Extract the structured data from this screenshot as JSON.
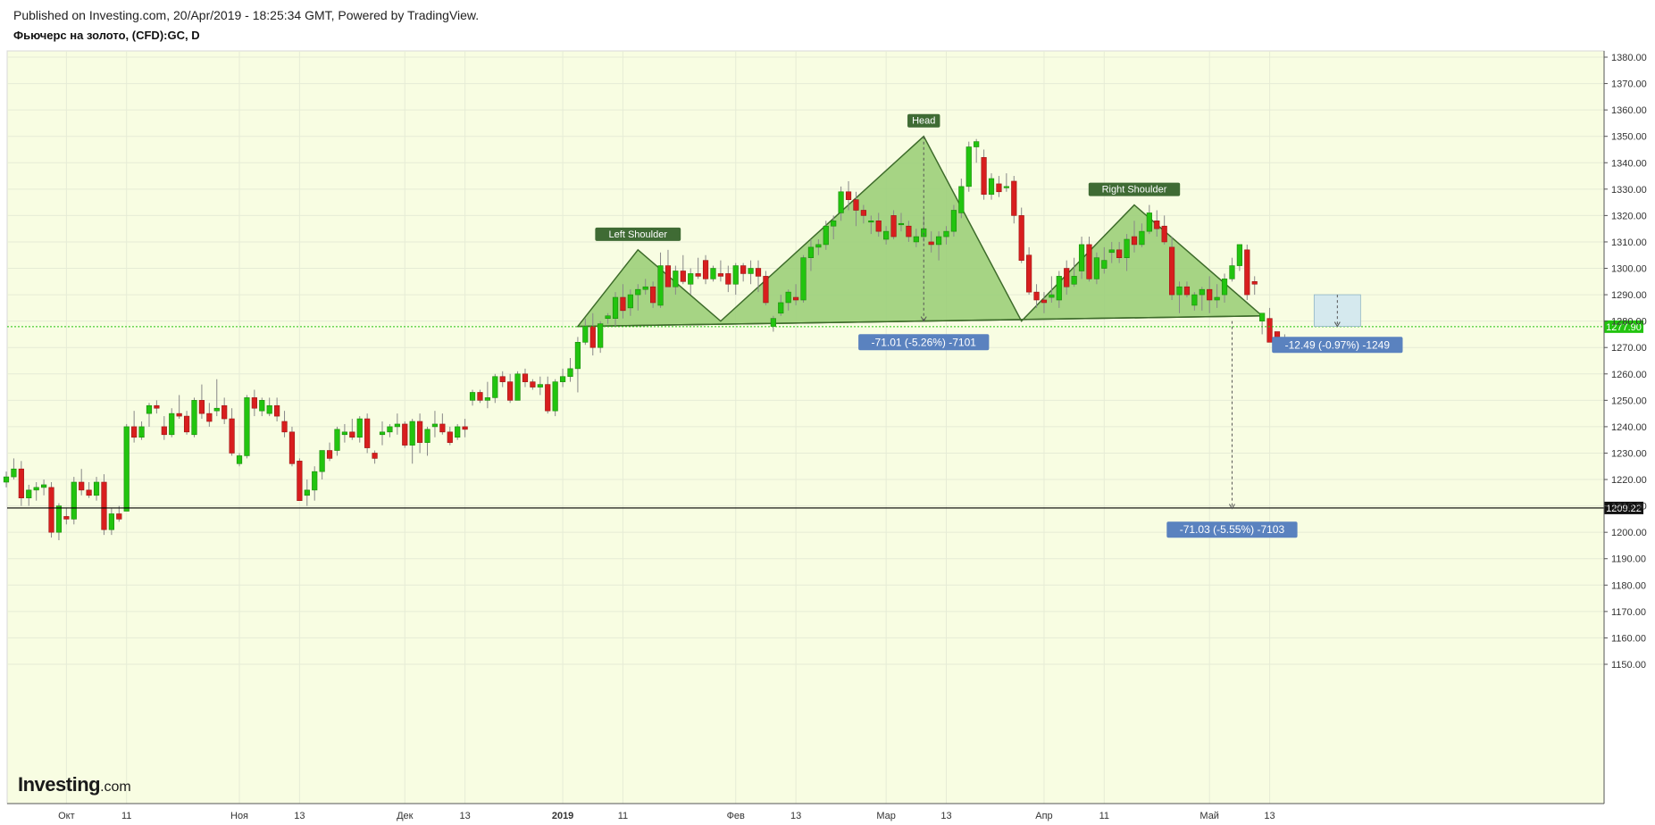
{
  "header": {
    "published": "Published on Investing.com, 20/Apr/2019 - 18:25:34 GMT, Powered by TradingView.",
    "instrument": "Фьючерс на золото, (CFD):GC, D"
  },
  "logo": {
    "name": "Investing",
    "suffix": ".com"
  },
  "colors": {
    "background": "#f8fde2",
    "up": "#22c40f",
    "down": "#d81e1e",
    "pattern_fill": "#9ccf7a",
    "pattern_stroke": "#3d6b2a",
    "label_bg": "#3f6b34",
    "measure_bg": "#5a82bf",
    "price_line": "#22c40f",
    "target_line": "#000000",
    "target_box": "#d5e9ee"
  },
  "chart_data": {
    "type": "candlestick",
    "ylim": [
      1145,
      1385
    ],
    "y_ticks": [
      1150,
      1160,
      1170,
      1180,
      1190,
      1200,
      1210,
      1220,
      1230,
      1240,
      1250,
      1260,
      1270,
      1280,
      1290,
      1300,
      1310,
      1320,
      1330,
      1340,
      1350,
      1360,
      1370,
      1380
    ],
    "y_tick_labels": [
      "1150.00",
      "1160.00",
      "1170.00",
      "1180.00",
      "1190.00",
      "1200.00",
      "1210.00",
      "1220.00",
      "1230.00",
      "1240.00",
      "1250.00",
      "1260.00",
      "1270.00",
      "1280.00",
      "1290.00",
      "1300.00",
      "1310.00",
      "1320.00",
      "1330.00",
      "1340.00",
      "1350.00",
      "1360.00",
      "1370.00",
      "1380.00"
    ],
    "x_ticks": [
      {
        "label": "Окт",
        "bar": 8,
        "bold": false
      },
      {
        "label": "11",
        "bar": 16,
        "bold": false
      },
      {
        "label": "Ноя",
        "bar": 31,
        "bold": false
      },
      {
        "label": "13",
        "bar": 39,
        "bold": false
      },
      {
        "label": "Дек",
        "bar": 53,
        "bold": false
      },
      {
        "label": "13",
        "bar": 61,
        "bold": false
      },
      {
        "label": "2019",
        "bar": 74,
        "bold": true
      },
      {
        "label": "11",
        "bar": 82,
        "bold": false
      },
      {
        "label": "Фев",
        "bar": 97,
        "bold": false
      },
      {
        "label": "13",
        "bar": 105,
        "bold": false
      },
      {
        "label": "Мар",
        "bar": 117,
        "bold": false
      },
      {
        "label": "13",
        "bar": 125,
        "bold": false
      },
      {
        "label": "Апр",
        "bar": 138,
        "bold": false
      },
      {
        "label": "11",
        "bar": 146,
        "bold": false
      },
      {
        "label": "Май",
        "bar": 160,
        "bold": false
      },
      {
        "label": "13",
        "bar": 168,
        "bold": false
      }
    ],
    "candles": [
      [
        1219,
        1223,
        1217,
        1221
      ],
      [
        1221,
        1228,
        1220,
        1224
      ],
      [
        1224,
        1227,
        1210,
        1213
      ],
      [
        1213,
        1218,
        1210,
        1216
      ],
      [
        1216,
        1219,
        1212,
        1217
      ],
      [
        1217,
        1220,
        1214,
        1218
      ],
      [
        1217,
        1219,
        1198,
        1200
      ],
      [
        1200,
        1211,
        1197,
        1210
      ],
      [
        1206,
        1209,
        1203,
        1205
      ],
      [
        1205,
        1221,
        1203,
        1219
      ],
      [
        1219,
        1224,
        1214,
        1216
      ],
      [
        1216,
        1219,
        1213,
        1214
      ],
      [
        1214,
        1221,
        1212,
        1219
      ],
      [
        1219,
        1222,
        1199,
        1201
      ],
      [
        1201,
        1209,
        1199,
        1207
      ],
      [
        1207,
        1210,
        1204,
        1205
      ],
      [
        1208,
        1241,
        1208,
        1240
      ],
      [
        1240,
        1246,
        1234,
        1236
      ],
      [
        1236,
        1242,
        1235,
        1240
      ],
      [
        1245,
        1249,
        1240,
        1248
      ],
      [
        1248,
        1250,
        1245,
        1247
      ],
      [
        1240,
        1244,
        1235,
        1237
      ],
      [
        1237,
        1247,
        1236,
        1245
      ],
      [
        1245,
        1252,
        1243,
        1244
      ],
      [
        1244,
        1246,
        1237,
        1238
      ],
      [
        1237,
        1251,
        1236,
        1250
      ],
      [
        1250,
        1256,
        1243,
        1245
      ],
      [
        1245,
        1249,
        1240,
        1242
      ],
      [
        1246,
        1258,
        1244,
        1247
      ],
      [
        1248,
        1251,
        1241,
        1243
      ],
      [
        1243,
        1247,
        1229,
        1230
      ],
      [
        1226,
        1230,
        1225,
        1229
      ],
      [
        1229,
        1252,
        1228,
        1251
      ],
      [
        1251,
        1254,
        1244,
        1247
      ],
      [
        1246,
        1251,
        1244,
        1250
      ],
      [
        1245,
        1251,
        1244,
        1248
      ],
      [
        1248,
        1251,
        1242,
        1244
      ],
      [
        1242,
        1246,
        1236,
        1238
      ],
      [
        1238,
        1240,
        1225,
        1226
      ],
      [
        1227,
        1228,
        1212,
        1212
      ],
      [
        1214,
        1220,
        1210,
        1216
      ],
      [
        1216,
        1225,
        1212,
        1223
      ],
      [
        1223,
        1231,
        1220,
        1231
      ],
      [
        1231,
        1234,
        1227,
        1228
      ],
      [
        1231,
        1240,
        1229,
        1239
      ],
      [
        1237,
        1241,
        1234,
        1238
      ],
      [
        1238,
        1243,
        1235,
        1236
      ],
      [
        1236,
        1244,
        1234,
        1243
      ],
      [
        1243,
        1245,
        1230,
        1232
      ],
      [
        1230,
        1231,
        1226,
        1228
      ],
      [
        1237,
        1242,
        1233,
        1238
      ],
      [
        1238,
        1241,
        1236,
        1240
      ],
      [
        1240,
        1245,
        1237,
        1241
      ],
      [
        1241,
        1242,
        1232,
        1233
      ],
      [
        1233,
        1243,
        1226,
        1242
      ],
      [
        1242,
        1245,
        1230,
        1234
      ],
      [
        1234,
        1240,
        1229,
        1239
      ],
      [
        1240,
        1246,
        1236,
        1241
      ],
      [
        1241,
        1245,
        1237,
        1238
      ],
      [
        1238,
        1240,
        1233,
        1234
      ],
      [
        1236,
        1241,
        1235,
        1240
      ],
      [
        1240,
        1243,
        1236,
        1239
      ],
      [
        1250,
        1254,
        1248,
        1253
      ],
      [
        1253,
        1254,
        1249,
        1250
      ],
      [
        1250,
        1257,
        1247,
        1251
      ],
      [
        1251,
        1260,
        1249,
        1259
      ],
      [
        1259,
        1261,
        1255,
        1257
      ],
      [
        1257,
        1260,
        1249,
        1250
      ],
      [
        1250,
        1261,
        1250,
        1260
      ],
      [
        1260,
        1262,
        1255,
        1257
      ],
      [
        1257,
        1258,
        1254,
        1255
      ],
      [
        1255,
        1259,
        1252,
        1256
      ],
      [
        1256,
        1259,
        1245,
        1246
      ],
      [
        1246,
        1258,
        1244,
        1257
      ],
      [
        1257,
        1262,
        1255,
        1259
      ],
      [
        1259,
        1266,
        1257,
        1262
      ],
      [
        1262,
        1274,
        1253,
        1272
      ],
      [
        1272,
        1281,
        1271,
        1278
      ],
      [
        1278,
        1283,
        1267,
        1270
      ],
      [
        1270,
        1280,
        1268,
        1279
      ],
      [
        1281,
        1283,
        1279,
        1282
      ],
      [
        1281,
        1291,
        1278,
        1289
      ],
      [
        1289,
        1294,
        1281,
        1284
      ],
      [
        1285,
        1292,
        1282,
        1290
      ],
      [
        1290,
        1294,
        1284,
        1292
      ],
      [
        1292,
        1296,
        1290,
        1293
      ],
      [
        1293,
        1295,
        1285,
        1287
      ],
      [
        1286,
        1306,
        1285,
        1301
      ],
      [
        1301,
        1307,
        1293,
        1293
      ],
      [
        1293,
        1301,
        1290,
        1299
      ],
      [
        1299,
        1305,
        1294,
        1295
      ],
      [
        1294,
        1300,
        1290,
        1298
      ],
      [
        1298,
        1304,
        1296,
        1297
      ],
      [
        1303,
        1305,
        1294,
        1296
      ],
      [
        1296,
        1301,
        1295,
        1300
      ],
      [
        1298,
        1303,
        1295,
        1297
      ],
      [
        1298,
        1301,
        1291,
        1294
      ],
      [
        1294,
        1302,
        1290,
        1301
      ],
      [
        1301,
        1302,
        1295,
        1298
      ],
      [
        1298,
        1303,
        1294,
        1300
      ],
      [
        1300,
        1303,
        1291,
        1297
      ],
      [
        1297,
        1299,
        1286,
        1287
      ],
      [
        1278,
        1282,
        1276,
        1281
      ],
      [
        1283,
        1290,
        1282,
        1287
      ],
      [
        1287,
        1292,
        1284,
        1291
      ],
      [
        1289,
        1294,
        1286,
        1288
      ],
      [
        1288,
        1305,
        1287,
        1304
      ],
      [
        1304,
        1311,
        1299,
        1308
      ],
      [
        1308,
        1311,
        1305,
        1309
      ],
      [
        1309,
        1318,
        1307,
        1316
      ],
      [
        1316,
        1320,
        1311,
        1318
      ],
      [
        1321,
        1331,
        1318,
        1329
      ],
      [
        1329,
        1333,
        1322,
        1326
      ],
      [
        1326,
        1329,
        1316,
        1322
      ],
      [
        1322,
        1324,
        1317,
        1320
      ],
      [
        1318,
        1320,
        1313,
        1318
      ],
      [
        1318,
        1321,
        1312,
        1314
      ],
      [
        1311,
        1316,
        1309,
        1314
      ],
      [
        1320,
        1322,
        1311,
        1312
      ],
      [
        1317,
        1321,
        1314,
        1317
      ],
      [
        1316,
        1318,
        1310,
        1312
      ],
      [
        1310,
        1315,
        1308,
        1312
      ],
      [
        1312,
        1320,
        1310,
        1315
      ],
      [
        1310,
        1314,
        1306,
        1309
      ],
      [
        1309,
        1314,
        1303,
        1312
      ],
      [
        1312,
        1316,
        1309,
        1314
      ],
      [
        1314,
        1324,
        1312,
        1322
      ],
      [
        1321,
        1334,
        1319,
        1331
      ],
      [
        1331,
        1348,
        1329,
        1346
      ],
      [
        1346,
        1349,
        1340,
        1348
      ],
      [
        1342,
        1345,
        1326,
        1328
      ],
      [
        1328,
        1336,
        1326,
        1334
      ],
      [
        1332,
        1335,
        1327,
        1329
      ],
      [
        1331,
        1336,
        1329,
        1331
      ],
      [
        1333,
        1335,
        1317,
        1320
      ],
      [
        1320,
        1323,
        1302,
        1303
      ],
      [
        1305,
        1308,
        1290,
        1291
      ],
      [
        1291,
        1294,
        1285,
        1288
      ],
      [
        1288,
        1291,
        1283,
        1287
      ],
      [
        1289,
        1297,
        1287,
        1290
      ],
      [
        1288,
        1299,
        1285,
        1297
      ],
      [
        1300,
        1303,
        1290,
        1293
      ],
      [
        1294,
        1304,
        1293,
        1297
      ],
      [
        1299,
        1312,
        1296,
        1309
      ],
      [
        1309,
        1312,
        1295,
        1296
      ],
      [
        1296,
        1306,
        1294,
        1304
      ],
      [
        1300,
        1308,
        1298,
        1303
      ],
      [
        1306,
        1310,
        1302,
        1307
      ],
      [
        1307,
        1310,
        1302,
        1304
      ],
      [
        1304,
        1313,
        1299,
        1311
      ],
      [
        1312,
        1318,
        1306,
        1309
      ],
      [
        1309,
        1317,
        1308,
        1314
      ],
      [
        1314,
        1324,
        1313,
        1321
      ],
      [
        1318,
        1322,
        1312,
        1315
      ],
      [
        1316,
        1320,
        1309,
        1310
      ],
      [
        1308,
        1312,
        1288,
        1290
      ],
      [
        1290,
        1295,
        1283,
        1293
      ],
      [
        1293,
        1295,
        1289,
        1290
      ],
      [
        1286,
        1291,
        1284,
        1290
      ],
      [
        1290,
        1293,
        1284,
        1292
      ],
      [
        1292,
        1297,
        1283,
        1288
      ],
      [
        1288,
        1294,
        1285,
        1289
      ],
      [
        1290,
        1298,
        1287,
        1296
      ],
      [
        1296,
        1304,
        1295,
        1301
      ],
      [
        1301,
        1309,
        1299,
        1309
      ],
      [
        1307,
        1309,
        1288,
        1290
      ],
      [
        1295,
        1297,
        1290,
        1294
      ],
      [
        1280,
        1282,
        1275,
        1283
      ],
      [
        1281,
        1285,
        1272,
        1272
      ],
      [
        1276,
        1276,
        1272,
        1274
      ],
      [
        1273,
        1275,
        1271,
        1272
      ]
    ],
    "current_price": 1277.9,
    "current_price_label": "1277.90",
    "target_price": 1209.22,
    "target_price_label": "1209.22",
    "pattern": [
      {
        "bar": 76,
        "price": 1278
      },
      {
        "bar": 84,
        "price": 1307
      },
      {
        "bar": 95,
        "price": 1280
      },
      {
        "bar": 122,
        "price": 1350
      },
      {
        "bar": 135,
        "price": 1280
      },
      {
        "bar": 150,
        "price": 1324
      },
      {
        "bar": 167,
        "price": 1282
      }
    ],
    "neckline": [
      {
        "bar": 76,
        "price": 1278
      },
      {
        "bar": 167,
        "price": 1282
      }
    ],
    "labels": [
      {
        "text": "Left Shoulder",
        "bar": 84,
        "price": 1307
      },
      {
        "text": "Head",
        "bar": 122,
        "price": 1350
      },
      {
        "text": "Right Shoulder",
        "bar": 150,
        "price": 1324
      }
    ],
    "measurements": [
      {
        "text": "-71.01 (-5.26%) -7101",
        "bar": 122,
        "from": 1350,
        "to": 1280,
        "label_price": 1272
      },
      {
        "text": "-71.03 (-5.55%) -7103",
        "bar": 163,
        "from": 1280,
        "to": 1209,
        "label_price": 1201
      },
      {
        "text": "-12.49 (-0.97%) -1249",
        "bar": 177,
        "from": 1290,
        "to": 1278,
        "label_price": 1271
      }
    ]
  }
}
